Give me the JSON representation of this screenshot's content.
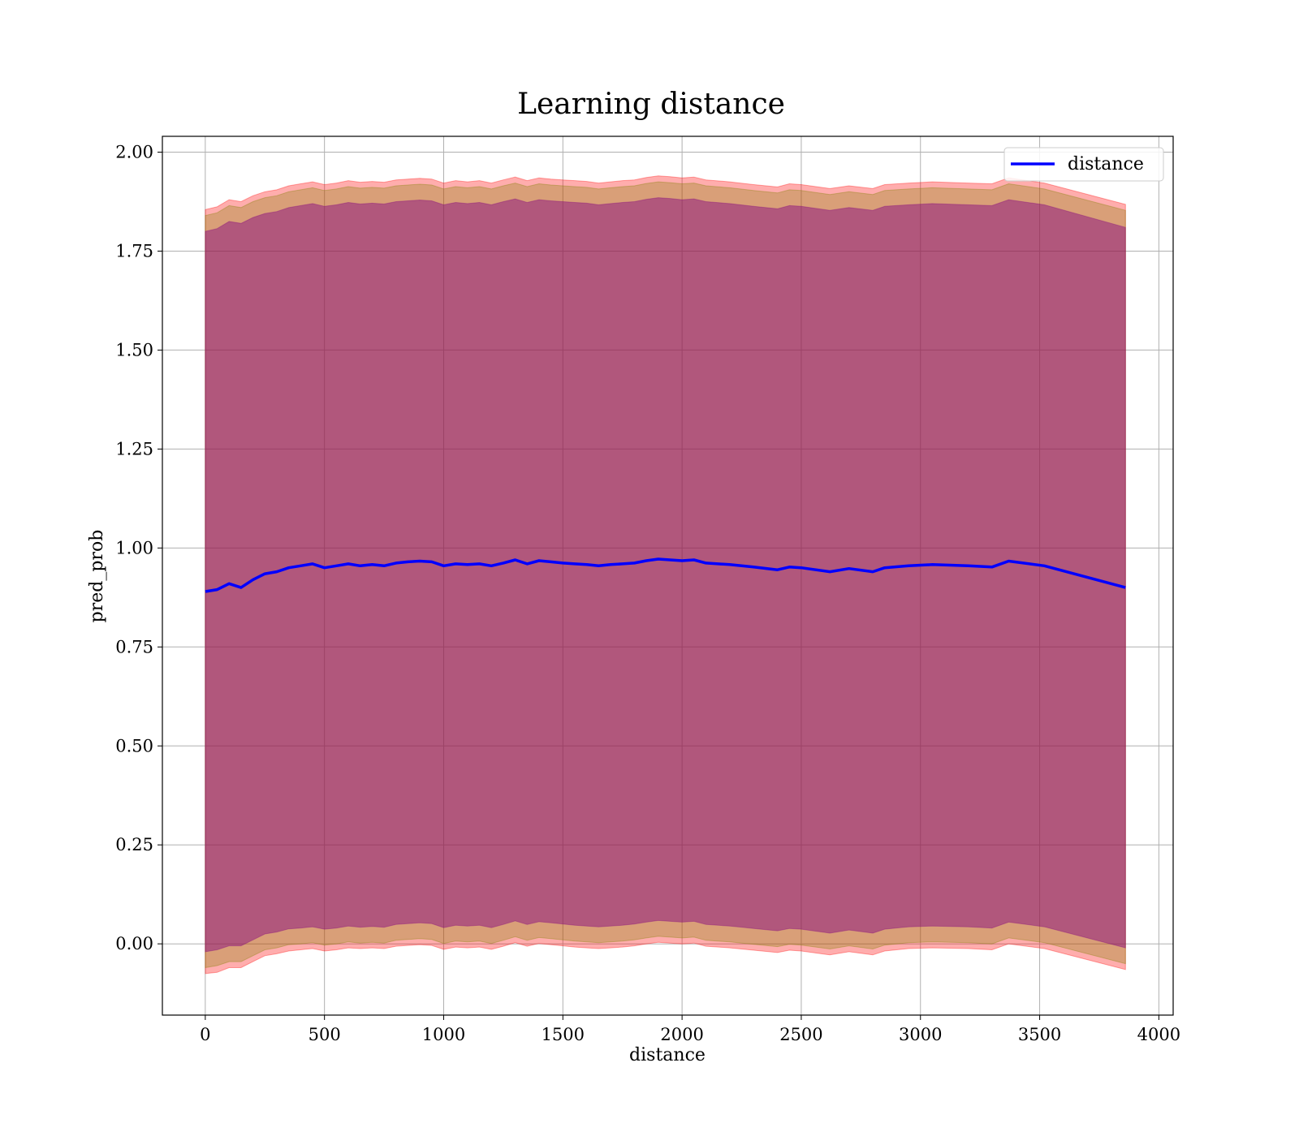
{
  "chart_data": {
    "type": "line",
    "title": "Learning distance",
    "xlabel": "distance",
    "ylabel": "pred_prob",
    "xlim": [
      -180,
      4060
    ],
    "ylim": [
      -0.18,
      2.04
    ],
    "xticks": [
      0,
      500,
      1000,
      1500,
      2000,
      2500,
      3000,
      3500,
      4000
    ],
    "xtick_labels": [
      "0",
      "500",
      "1000",
      "1500",
      "2000",
      "2500",
      "3000",
      "3500",
      "4000"
    ],
    "yticks": [
      0.0,
      0.25,
      0.5,
      0.75,
      1.0,
      1.25,
      1.5,
      1.75,
      2.0
    ],
    "ytick_labels": [
      "0.00",
      "0.25",
      "0.50",
      "0.75",
      "1.00",
      "1.25",
      "1.50",
      "1.75",
      "2.00"
    ],
    "grid": true,
    "legend_position": "top-right",
    "series": [
      {
        "name": "distance",
        "color": "#0000ff",
        "x": [
          0,
          50,
          100,
          150,
          200,
          250,
          300,
          350,
          400,
          450,
          500,
          550,
          600,
          650,
          700,
          750,
          800,
          850,
          900,
          950,
          1000,
          1050,
          1100,
          1150,
          1200,
          1250,
          1300,
          1350,
          1400,
          1450,
          1500,
          1550,
          1600,
          1650,
          1700,
          1750,
          1800,
          1850,
          1900,
          1950,
          2000,
          2050,
          2100,
          2200,
          2300,
          2400,
          2450,
          2500,
          2620,
          2700,
          2800,
          2850,
          2950,
          3050,
          3200,
          3300,
          3370,
          3520,
          3860
        ],
        "y": [
          0.89,
          0.895,
          0.91,
          0.9,
          0.92,
          0.935,
          0.94,
          0.95,
          0.955,
          0.96,
          0.95,
          0.955,
          0.96,
          0.955,
          0.958,
          0.955,
          0.962,
          0.965,
          0.967,
          0.965,
          0.955,
          0.96,
          0.958,
          0.96,
          0.955,
          0.962,
          0.97,
          0.96,
          0.968,
          0.965,
          0.962,
          0.96,
          0.958,
          0.955,
          0.958,
          0.96,
          0.962,
          0.968,
          0.972,
          0.97,
          0.968,
          0.97,
          0.962,
          0.958,
          0.952,
          0.945,
          0.952,
          0.95,
          0.94,
          0.948,
          0.94,
          0.95,
          0.955,
          0.958,
          0.955,
          0.952,
          0.967,
          0.955,
          0.9
        ]
      }
    ],
    "bands": [
      {
        "color": "#ff0000",
        "opacity": 0.32,
        "lower": [
          -0.075,
          -0.072,
          -0.06,
          -0.06,
          -0.045,
          -0.03,
          -0.025,
          -0.018,
          -0.015,
          -0.012,
          -0.018,
          -0.015,
          -0.01,
          -0.012,
          -0.01,
          -0.012,
          -0.006,
          -0.004,
          -0.002,
          -0.004,
          -0.014,
          -0.008,
          -0.01,
          -0.008,
          -0.014,
          -0.006,
          0.003,
          -0.006,
          0.001,
          -0.002,
          -0.005,
          -0.008,
          -0.01,
          -0.012,
          -0.01,
          -0.008,
          -0.005,
          0.0,
          0.004,
          0.002,
          0.0,
          0.002,
          -0.006,
          -0.01,
          -0.016,
          -0.022,
          -0.016,
          -0.018,
          -0.028,
          -0.02,
          -0.028,
          -0.018,
          -0.012,
          -0.01,
          -0.012,
          -0.015,
          0.0,
          -0.012,
          -0.065
        ],
        "upper": [
          1.855,
          1.862,
          1.88,
          1.875,
          1.89,
          1.9,
          1.905,
          1.915,
          1.92,
          1.925,
          1.918,
          1.922,
          1.928,
          1.924,
          1.926,
          1.924,
          1.93,
          1.932,
          1.934,
          1.932,
          1.922,
          1.928,
          1.925,
          1.928,
          1.922,
          1.93,
          1.937,
          1.928,
          1.935,
          1.932,
          1.93,
          1.928,
          1.926,
          1.922,
          1.925,
          1.928,
          1.93,
          1.936,
          1.94,
          1.938,
          1.935,
          1.937,
          1.93,
          1.925,
          1.918,
          1.912,
          1.92,
          1.918,
          1.908,
          1.915,
          1.908,
          1.918,
          1.922,
          1.925,
          1.922,
          1.92,
          1.935,
          1.922,
          1.868
        ]
      },
      {
        "color": "#808000",
        "opacity": 0.3,
        "lower": [
          -0.06,
          -0.055,
          -0.045,
          -0.045,
          -0.03,
          -0.015,
          -0.01,
          -0.002,
          0.0,
          0.003,
          -0.003,
          0.0,
          0.005,
          0.002,
          0.004,
          0.002,
          0.009,
          0.011,
          0.013,
          0.011,
          0.001,
          0.007,
          0.005,
          0.007,
          0.001,
          0.009,
          0.018,
          0.009,
          0.016,
          0.013,
          0.01,
          0.007,
          0.005,
          0.003,
          0.005,
          0.007,
          0.01,
          0.015,
          0.019,
          0.017,
          0.015,
          0.017,
          0.009,
          0.005,
          -0.001,
          -0.007,
          -0.001,
          -0.003,
          -0.013,
          -0.005,
          -0.013,
          -0.003,
          0.003,
          0.005,
          0.003,
          0.0,
          0.015,
          0.003,
          -0.05
        ],
        "upper": [
          1.84,
          1.847,
          1.865,
          1.86,
          1.875,
          1.885,
          1.89,
          1.9,
          1.905,
          1.91,
          1.903,
          1.907,
          1.913,
          1.909,
          1.911,
          1.909,
          1.915,
          1.917,
          1.919,
          1.917,
          1.907,
          1.913,
          1.91,
          1.913,
          1.907,
          1.915,
          1.922,
          1.913,
          1.92,
          1.917,
          1.915,
          1.913,
          1.911,
          1.907,
          1.91,
          1.913,
          1.915,
          1.921,
          1.925,
          1.923,
          1.92,
          1.922,
          1.915,
          1.91,
          1.903,
          1.897,
          1.905,
          1.903,
          1.893,
          1.9,
          1.893,
          1.903,
          1.907,
          1.91,
          1.907,
          1.905,
          1.92,
          1.907,
          1.853
        ]
      },
      {
        "color": "#800080",
        "opacity": 0.45,
        "lower": [
          -0.02,
          -0.015,
          -0.005,
          -0.005,
          0.01,
          0.025,
          0.03,
          0.038,
          0.04,
          0.043,
          0.037,
          0.04,
          0.045,
          0.042,
          0.044,
          0.042,
          0.049,
          0.051,
          0.053,
          0.051,
          0.041,
          0.047,
          0.045,
          0.047,
          0.041,
          0.049,
          0.058,
          0.049,
          0.056,
          0.053,
          0.05,
          0.047,
          0.045,
          0.043,
          0.045,
          0.047,
          0.05,
          0.055,
          0.059,
          0.057,
          0.055,
          0.057,
          0.049,
          0.045,
          0.039,
          0.033,
          0.039,
          0.037,
          0.027,
          0.035,
          0.027,
          0.037,
          0.043,
          0.045,
          0.043,
          0.04,
          0.055,
          0.043,
          -0.01
        ],
        "upper": [
          1.8,
          1.807,
          1.825,
          1.82,
          1.835,
          1.845,
          1.85,
          1.86,
          1.865,
          1.87,
          1.863,
          1.867,
          1.873,
          1.869,
          1.871,
          1.869,
          1.875,
          1.877,
          1.879,
          1.877,
          1.867,
          1.873,
          1.87,
          1.873,
          1.867,
          1.875,
          1.882,
          1.873,
          1.88,
          1.877,
          1.875,
          1.873,
          1.871,
          1.867,
          1.87,
          1.873,
          1.875,
          1.881,
          1.885,
          1.883,
          1.88,
          1.882,
          1.875,
          1.87,
          1.863,
          1.857,
          1.865,
          1.863,
          1.853,
          1.86,
          1.853,
          1.863,
          1.867,
          1.87,
          1.867,
          1.865,
          1.88,
          1.867,
          1.81
        ]
      }
    ]
  }
}
